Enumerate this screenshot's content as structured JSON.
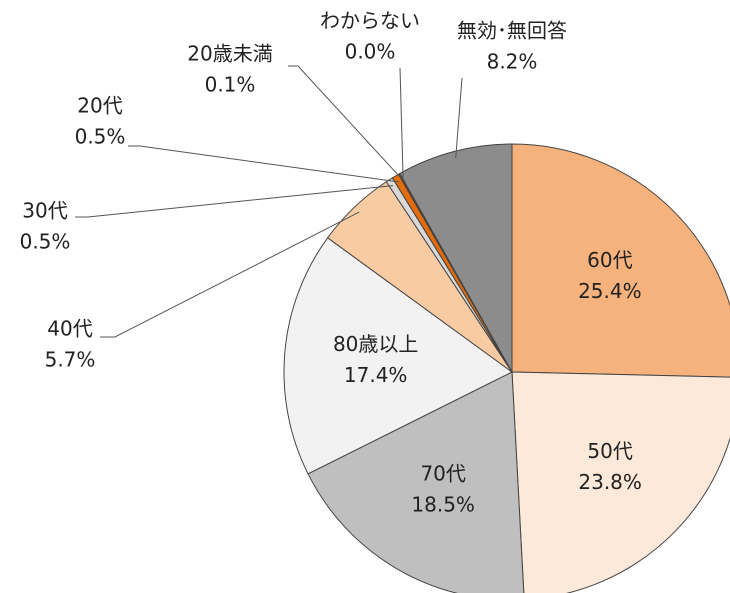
{
  "chart_data": {
    "type": "pie",
    "categories": [
      "60代",
      "50代",
      "70代",
      "80歳以上",
      "40代",
      "30代",
      "20代",
      "20歳未満",
      "わからない",
      "無効･無回答"
    ],
    "values": [
      25.4,
      23.8,
      18.5,
      17.4,
      5.7,
      0.5,
      0.5,
      0.1,
      0.0,
      8.2
    ],
    "value_labels": [
      "25.4%",
      "23.8%",
      "18.5%",
      "17.4%",
      "5.7%",
      "0.5%",
      "0.5%",
      "0.1%",
      "0.0%",
      "8.2%"
    ],
    "colors": [
      "#f5b27c",
      "#fde9d9",
      "#bfbfbf",
      "#f2f2f2",
      "#f9cba3",
      "#d9d9d9",
      "#e46c0a",
      "#7f3f10",
      "#404040",
      "#8c8c8c"
    ]
  }
}
